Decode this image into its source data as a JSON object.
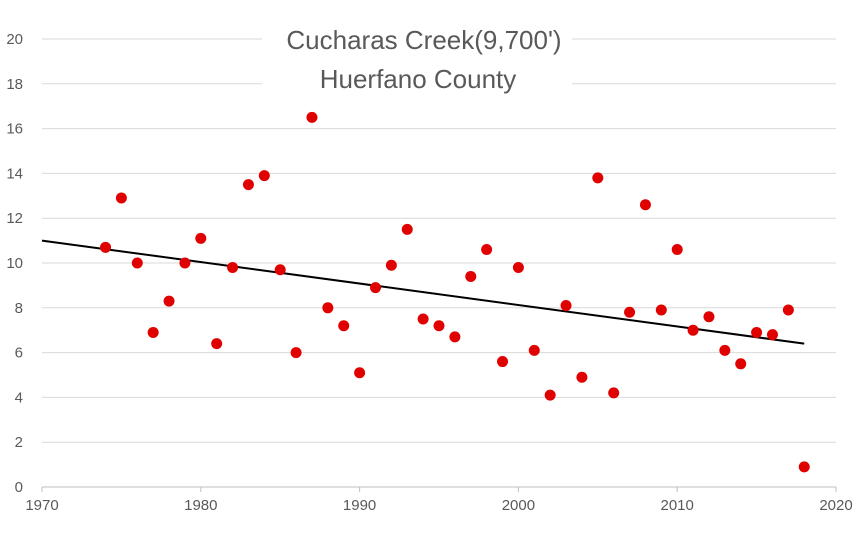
{
  "chart_data": {
    "type": "scatter",
    "title": "Cucharas Creek(9,700')",
    "subtitle": "Huerfano County",
    "xlabel": "",
    "ylabel": "",
    "xlim": [
      1970,
      2020
    ],
    "ylim": [
      0,
      20
    ],
    "x_ticks": [
      1970,
      1980,
      1990,
      2000,
      2010,
      2020
    ],
    "y_ticks": [
      0,
      2,
      4,
      6,
      8,
      10,
      12,
      14,
      16,
      18,
      20
    ],
    "grid": "horizontal",
    "legend": "none",
    "point_color": "#e00000",
    "trendline_color": "#000000",
    "grid_color": "#d9d9d9",
    "series": [
      {
        "points": [
          [
            1974,
            10.7
          ],
          [
            1975,
            12.9
          ],
          [
            1976,
            10.0
          ],
          [
            1977,
            6.9
          ],
          [
            1978,
            8.3
          ],
          [
            1979,
            10.0
          ],
          [
            1980,
            11.1
          ],
          [
            1981,
            6.4
          ],
          [
            1982,
            9.8
          ],
          [
            1983,
            13.5
          ],
          [
            1984,
            13.9
          ],
          [
            1985,
            9.7
          ],
          [
            1986,
            6.0
          ],
          [
            1987,
            16.5
          ],
          [
            1988,
            8.0
          ],
          [
            1989,
            7.2
          ],
          [
            1990,
            5.1
          ],
          [
            1991,
            8.9
          ],
          [
            1992,
            9.9
          ],
          [
            1993,
            11.5
          ],
          [
            1994,
            7.5
          ],
          [
            1995,
            7.2
          ],
          [
            1996,
            6.7
          ],
          [
            1997,
            9.4
          ],
          [
            1998,
            10.6
          ],
          [
            1999,
            5.6
          ],
          [
            2000,
            9.8
          ],
          [
            2001,
            6.1
          ],
          [
            2002,
            4.1
          ],
          [
            2003,
            8.1
          ],
          [
            2004,
            4.9
          ],
          [
            2005,
            13.8
          ],
          [
            2006,
            4.2
          ],
          [
            2007,
            7.8
          ],
          [
            2008,
            12.6
          ],
          [
            2009,
            7.9
          ],
          [
            2010,
            10.6
          ],
          [
            2011,
            7.0
          ],
          [
            2012,
            7.6
          ],
          [
            2013,
            6.1
          ],
          [
            2014,
            5.5
          ],
          [
            2015,
            6.9
          ],
          [
            2016,
            6.8
          ],
          [
            2017,
            7.9
          ],
          [
            2018,
            0.9
          ]
        ]
      }
    ],
    "trendline": {
      "type": "linear",
      "from": [
        1970,
        11.0
      ],
      "to": [
        2018,
        6.4
      ]
    }
  }
}
